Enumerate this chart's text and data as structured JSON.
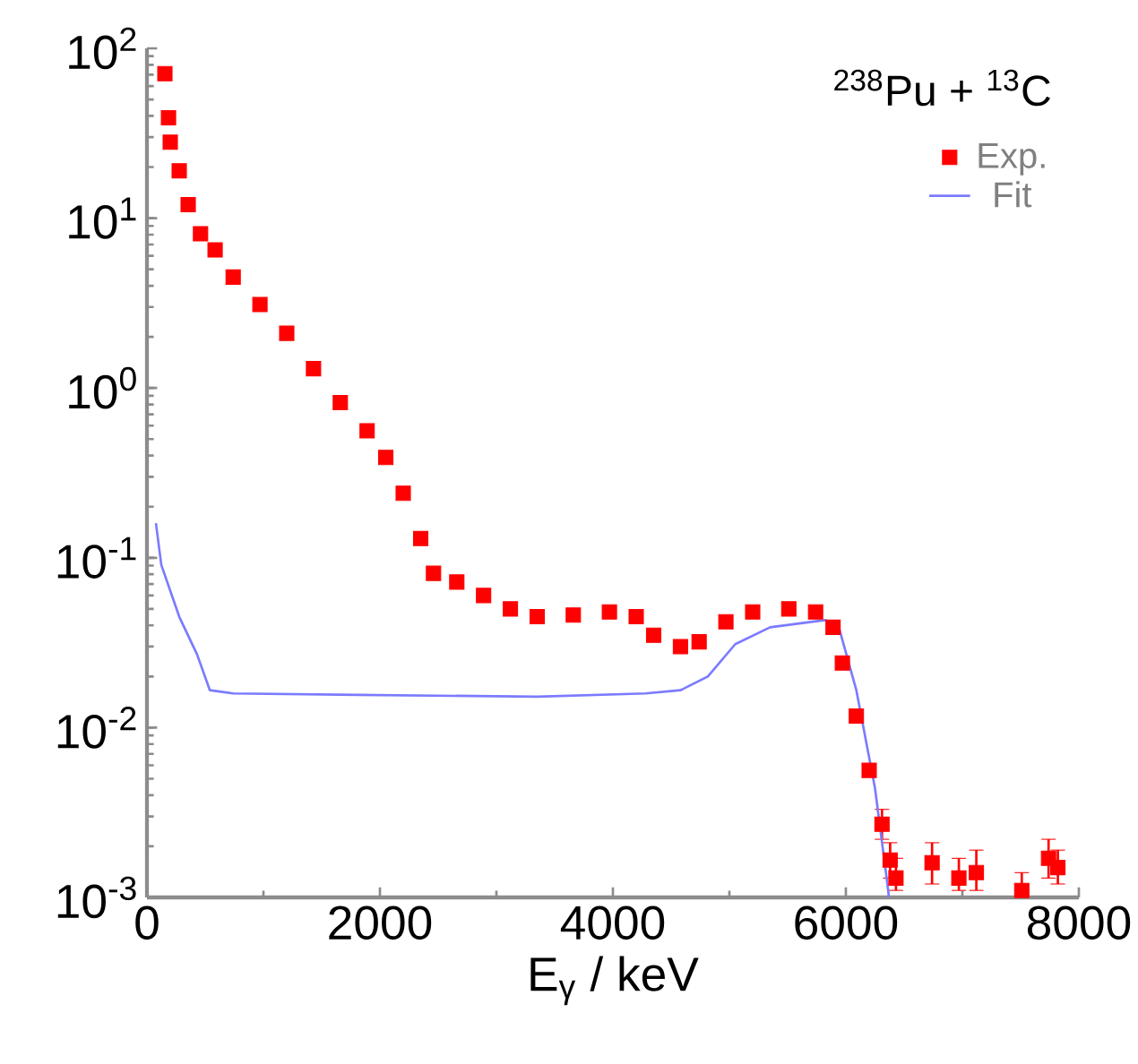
{
  "chart_data": {
    "type": "line",
    "xlabel": "E$_{γ}$ / keV",
    "legend_title": "$^{238}$Pu + $^{13}$C",
    "xlim": [
      0,
      8000
    ],
    "xticks": [
      0,
      2000,
      4000,
      6000,
      8000
    ],
    "ylim": [
      0.001,
      100
    ],
    "yticks": [
      {
        "value": 0.001,
        "label": "10$^{-3}$"
      },
      {
        "value": 0.01,
        "label": "10$^{-2}$"
      },
      {
        "value": 0.1,
        "label": "10$^{-1}$"
      },
      {
        "value": 1,
        "label": "10$^{0}$"
      },
      {
        "value": 10,
        "label": "10$^{1}$"
      },
      {
        "value": 100,
        "label": "10$^{2}$"
      }
    ],
    "log": "y",
    "legend": "top right",
    "series": [
      {
        "name": "Exp.",
        "type": "scatter",
        "marker": "square",
        "color": "#ff0000",
        "x": [
          154,
          185,
          200,
          277,
          354,
          460,
          585,
          740,
          970,
          1200,
          1430,
          1660,
          1890,
          2050,
          2200,
          2350,
          2460,
          2660,
          2890,
          3120,
          3350,
          3660,
          3970,
          4200,
          4350,
          4580,
          4740,
          4970,
          5200,
          5510,
          5740,
          5890,
          5970,
          6090,
          6200,
          6310,
          6380,
          6430,
          6740,
          6970,
          7120,
          7510,
          7740,
          7820
        ],
        "values": [
          71,
          39,
          28,
          19,
          12,
          8.1,
          6.5,
          4.5,
          3.1,
          2.1,
          1.3,
          0.82,
          0.56,
          0.39,
          0.24,
          0.13,
          0.081,
          0.072,
          0.06,
          0.05,
          0.045,
          0.046,
          0.048,
          0.045,
          0.035,
          0.03,
          0.032,
          0.042,
          0.048,
          0.05,
          0.048,
          0.039,
          0.024,
          0.0117,
          0.0056,
          0.0027,
          0.00166,
          0.0013,
          0.0016,
          0.0013,
          0.0014,
          0.0011,
          0.0017,
          0.0015
        ],
        "errors": [
          null,
          null,
          null,
          null,
          null,
          null,
          null,
          null,
          null,
          null,
          null,
          null,
          null,
          null,
          null,
          null,
          null,
          null,
          null,
          null,
          null,
          null,
          null,
          null,
          null,
          null,
          null,
          null,
          null,
          null,
          null,
          null,
          null,
          null,
          null,
          [
            0.0022,
            0.0033
          ],
          [
            0.0013,
            0.0021
          ],
          [
            0.0011,
            0.0017
          ],
          [
            0.0012,
            0.0021
          ],
          [
            0.0011,
            0.0017
          ],
          [
            0.0011,
            0.0019
          ],
          [
            0.001,
            0.0014
          ],
          [
            0.0013,
            0.0022
          ],
          [
            0.0012,
            0.0019
          ]
        ]
      },
      {
        "name": "Fit",
        "marker": "none",
        "color": "#7b7bff",
        "x": [
          77,
          123,
          277,
          430,
          540,
          740,
          1815,
          3350,
          4280,
          4580,
          4815,
          5050,
          5350,
          5820,
          5940,
          6090,
          6250,
          6350,
          6370
        ],
        "values": [
          0.16,
          0.091,
          0.045,
          0.027,
          0.0166,
          0.0159,
          0.0156,
          0.0152,
          0.0159,
          0.0166,
          0.02,
          0.031,
          0.039,
          0.043,
          0.039,
          0.0166,
          0.0044,
          0.0013,
          0.001
        ]
      }
    ]
  }
}
